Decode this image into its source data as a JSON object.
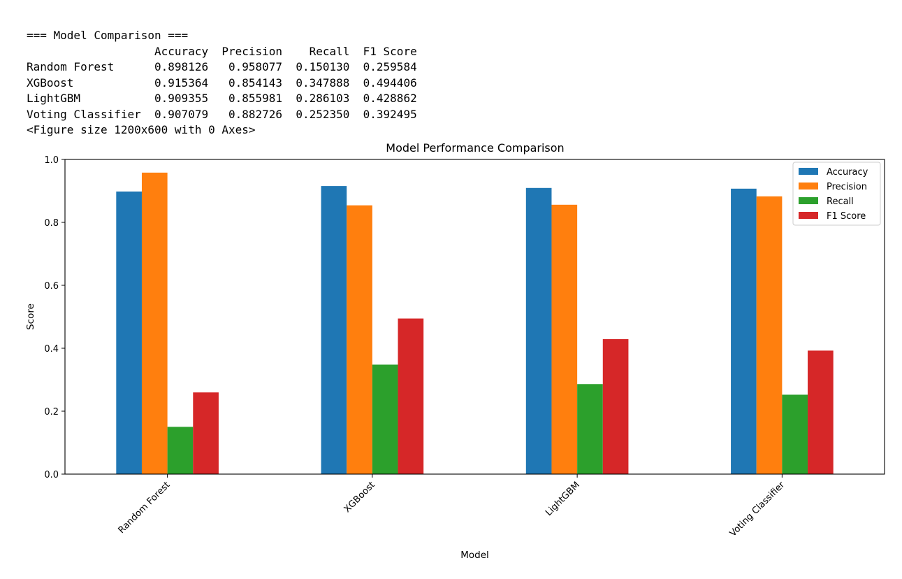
{
  "console": {
    "header": "=== Model Comparison ===",
    "columns": [
      "Accuracy",
      "Precision",
      "Recall",
      "F1 Score"
    ],
    "rows": [
      {
        "model": "Random Forest",
        "values": [
          "0.898126",
          "0.958077",
          "0.150130",
          "0.259584"
        ]
      },
      {
        "model": "XGBoost",
        "values": [
          "0.915364",
          "0.854143",
          "0.347888",
          "0.494406"
        ]
      },
      {
        "model": "LightGBM",
        "values": [
          "0.909355",
          "0.855981",
          "0.286103",
          "0.428862"
        ]
      },
      {
        "model": "Voting Classifier",
        "values": [
          "0.907079",
          "0.882726",
          "0.252350",
          "0.392495"
        ]
      }
    ],
    "figure_note": "<Figure size 1200x600 with 0 Axes>"
  },
  "chart_data": {
    "type": "bar",
    "title": "Model Performance Comparison",
    "xlabel": "Model",
    "ylabel": "Score",
    "ylim": [
      0,
      1.0
    ],
    "yticks": [
      "0.0",
      "0.2",
      "0.4",
      "0.6",
      "0.8",
      "1.0"
    ],
    "categories": [
      "Random Forest",
      "XGBoost",
      "LightGBM",
      "Voting Classifier"
    ],
    "series": [
      {
        "name": "Accuracy",
        "color": "#1f77b4",
        "values": [
          0.898126,
          0.915364,
          0.909355,
          0.907079
        ]
      },
      {
        "name": "Precision",
        "color": "#ff7f0e",
        "values": [
          0.958077,
          0.854143,
          0.855981,
          0.882726
        ]
      },
      {
        "name": "Recall",
        "color": "#2ca02c",
        "values": [
          0.15013,
          0.347888,
          0.286103,
          0.25235
        ]
      },
      {
        "name": "F1 Score",
        "color": "#d62728",
        "values": [
          0.259584,
          0.494406,
          0.428862,
          0.392495
        ]
      }
    ],
    "grid": false,
    "legend_position": "upper right",
    "xtick_rotation": "45"
  }
}
